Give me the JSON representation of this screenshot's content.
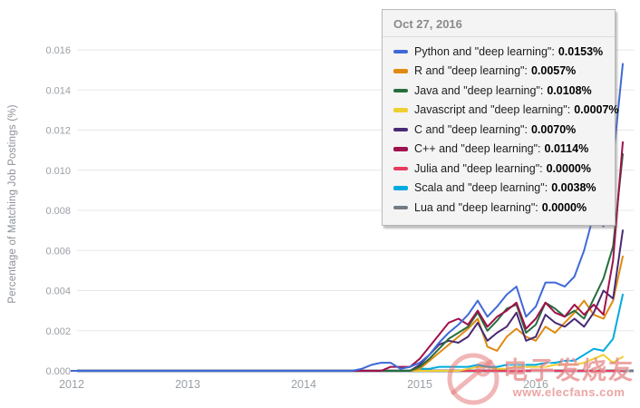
{
  "tooltip": {
    "date": "Oct 27, 2016",
    "items": [
      {
        "label": "Python and \"deep learning\"",
        "value": "0.0153%",
        "color": "#3f69d8"
      },
      {
        "label": "R and \"deep learning\"",
        "value": "0.0057%",
        "color": "#e08a12"
      },
      {
        "label": "Java and \"deep learning\"",
        "value": "0.0108%",
        "color": "#276e3e"
      },
      {
        "label": "Javascript and \"deep learning\"",
        "value": "0.0007%",
        "color": "#eecf32"
      },
      {
        "label": "C and \"deep learning\"",
        "value": "0.0070%",
        "color": "#482a75"
      },
      {
        "label": "C++ and \"deep learning\"",
        "value": "0.0114%",
        "color": "#a0104c"
      },
      {
        "label": "Julia and \"deep learning\"",
        "value": "0.0000%",
        "color": "#e93a5f"
      },
      {
        "label": "Scala and \"deep learning\"",
        "value": "0.0038%",
        "color": "#00aade"
      },
      {
        "label": "Lua and \"deep learning\"",
        "value": "0.0000%",
        "color": "#737b84"
      }
    ]
  },
  "watermark": {
    "title": "电子发烧友",
    "url": "www.elecfans.com"
  },
  "chart_data": {
    "type": "line",
    "title": "",
    "xlabel": "",
    "ylabel": "Percentage of Matching Job Postings (%)",
    "ylim": [
      0,
      0.016
    ],
    "y_tick_step": 0.002,
    "y_tick_labels": [
      "0.000",
      "0.002",
      "0.004",
      "0.006",
      "0.008",
      "0.010",
      "0.012",
      "0.014",
      "0.016"
    ],
    "x_tick_labels": [
      "2012",
      "2013",
      "2014",
      "2015",
      "2016"
    ],
    "x_range_months": {
      "start": "2012-01",
      "end": "2016-10",
      "points": 58
    },
    "grid": true,
    "legend_position": "tooltip-overlay",
    "draw_order": [
      "Lua",
      "Julia",
      "Javascript",
      "Scala",
      "R",
      "C",
      "Java",
      "C++",
      "Python"
    ],
    "series": [
      {
        "name": "Python",
        "color": "#3f69d8",
        "values": [
          0,
          0,
          0,
          0,
          0,
          0,
          0,
          0,
          0,
          0,
          0,
          0,
          0,
          0,
          0,
          0,
          0,
          0,
          0,
          0,
          0,
          0,
          0,
          0,
          0,
          0,
          0,
          0,
          0,
          0,
          0.0001,
          0.0003,
          0.0004,
          0.0004,
          0.0001,
          0.0002,
          0.0004,
          0.0008,
          0.0014,
          0.0019,
          0.0023,
          0.0028,
          0.0035,
          0.0027,
          0.0032,
          0.0038,
          0.0042,
          0.0027,
          0.0032,
          0.0044,
          0.0044,
          0.0042,
          0.0047,
          0.006,
          0.0078,
          0.0072,
          0.0105,
          0.0153
        ]
      },
      {
        "name": "R",
        "color": "#e08a12",
        "values": [
          0,
          0,
          0,
          0,
          0,
          0,
          0,
          0,
          0,
          0,
          0,
          0,
          0,
          0,
          0,
          0,
          0,
          0,
          0,
          0,
          0,
          0,
          0,
          0,
          0,
          0,
          0,
          0,
          0,
          0,
          0,
          0,
          0,
          0,
          0,
          0,
          0.0001,
          0.0005,
          0.0009,
          0.0013,
          0.0017,
          0.0021,
          0.0026,
          0.0012,
          0.001,
          0.0017,
          0.0021,
          0.0017,
          0.0015,
          0.0022,
          0.0019,
          0.0024,
          0.0029,
          0.0035,
          0.0028,
          0.0026,
          0.0035,
          0.0057
        ]
      },
      {
        "name": "Java",
        "color": "#276e3e",
        "values": [
          0,
          0,
          0,
          0,
          0,
          0,
          0,
          0,
          0,
          0,
          0,
          0,
          0,
          0,
          0,
          0,
          0,
          0,
          0,
          0,
          0,
          0,
          0,
          0,
          0,
          0,
          0,
          0,
          0,
          0,
          0,
          0,
          0,
          0,
          0,
          0,
          0.0002,
          0.0006,
          0.0011,
          0.0016,
          0.0019,
          0.0022,
          0.0029,
          0.002,
          0.0025,
          0.0031,
          0.0033,
          0.0019,
          0.0023,
          0.0034,
          0.0031,
          0.0027,
          0.003,
          0.0026,
          0.0036,
          0.0046,
          0.0062,
          0.0108
        ]
      },
      {
        "name": "Javascript",
        "color": "#eecf32",
        "values": [
          0,
          0,
          0,
          0,
          0,
          0,
          0,
          0,
          0,
          0,
          0,
          0,
          0,
          0,
          0,
          0,
          0,
          0,
          0,
          0,
          0,
          0,
          0,
          0,
          0,
          0,
          0,
          0,
          0,
          0,
          0,
          0,
          0,
          0,
          0,
          0,
          0,
          0,
          0,
          0,
          0,
          0.0001,
          0.0002,
          0.0002,
          0.0001,
          0.0001,
          0.0002,
          0.0002,
          0.0002,
          0.0002,
          0.0003,
          0.0003,
          0.0003,
          0.0004,
          0.0006,
          0.0008,
          0.0004,
          0.0007
        ]
      },
      {
        "name": "C",
        "color": "#482a75",
        "values": [
          0,
          0,
          0,
          0,
          0,
          0,
          0,
          0,
          0,
          0,
          0,
          0,
          0,
          0,
          0,
          0,
          0,
          0,
          0,
          0,
          0,
          0,
          0,
          0,
          0,
          0,
          0,
          0,
          0,
          0,
          0,
          0,
          0,
          0,
          0,
          0,
          0.0003,
          0.0008,
          0.0013,
          0.0015,
          0.0014,
          0.0017,
          0.0024,
          0.0015,
          0.0019,
          0.0022,
          0.0029,
          0.0015,
          0.0017,
          0.0028,
          0.0024,
          0.0022,
          0.0026,
          0.0022,
          0.0029,
          0.004,
          0.0036,
          0.007
        ]
      },
      {
        "name": "C++",
        "color": "#a0104c",
        "values": [
          0,
          0,
          0,
          0,
          0,
          0,
          0,
          0,
          0,
          0,
          0,
          0,
          0,
          0,
          0,
          0,
          0,
          0,
          0,
          0,
          0,
          0,
          0,
          0,
          0,
          0,
          0,
          0,
          0,
          0,
          0,
          0,
          0,
          0.0002,
          0.0002,
          0.0002,
          0.0006,
          0.0012,
          0.0018,
          0.0024,
          0.0026,
          0.0023,
          0.003,
          0.0022,
          0.0027,
          0.003,
          0.0034,
          0.0021,
          0.0026,
          0.0034,
          0.0029,
          0.0027,
          0.0033,
          0.0028,
          0.0033,
          0.0028,
          0.0055,
          0.0114
        ]
      },
      {
        "name": "Julia",
        "color": "#e93a5f",
        "values": [
          0,
          0,
          0,
          0,
          0,
          0,
          0,
          0,
          0,
          0,
          0,
          0,
          0,
          0,
          0,
          0,
          0,
          0,
          0,
          0,
          0,
          0,
          0,
          0,
          0,
          0,
          0,
          0,
          0,
          0,
          0,
          0,
          0,
          0,
          0,
          0,
          0,
          0,
          0,
          0,
          0,
          0,
          0,
          0,
          0,
          0,
          0,
          0,
          0,
          0,
          0,
          0,
          0,
          0,
          0,
          0,
          0,
          0
        ]
      },
      {
        "name": "Scala",
        "color": "#00aade",
        "values": [
          0,
          0,
          0,
          0,
          0,
          0,
          0,
          0,
          0,
          0,
          0,
          0,
          0,
          0,
          0,
          0,
          0,
          0,
          0,
          0,
          0,
          0,
          0,
          0,
          0,
          0,
          0,
          0,
          0,
          0,
          0,
          0,
          0,
          0,
          0,
          0,
          0.0001,
          0.0001,
          0.0002,
          0.0002,
          0.0002,
          0.0002,
          0.0003,
          0.0002,
          0.0002,
          0.0003,
          0.0003,
          0.0003,
          0.0003,
          0.0004,
          0.0004,
          0.0005,
          0.0005,
          0.0008,
          0.0011,
          0.001,
          0.0016,
          0.0038
        ]
      },
      {
        "name": "Lua",
        "color": "#737b84",
        "values": [
          0,
          0,
          0,
          0,
          0,
          0,
          0,
          0,
          0,
          0,
          0,
          0,
          0,
          0,
          0,
          0,
          0,
          0,
          0,
          0,
          0,
          0,
          0,
          0,
          0,
          0,
          0,
          0,
          0,
          0,
          0,
          0,
          0,
          0,
          0,
          0,
          0,
          0,
          0,
          0,
          0,
          0,
          0,
          0,
          0,
          0,
          0,
          0,
          0,
          0,
          0,
          0,
          0,
          0,
          0,
          0,
          0,
          0
        ]
      }
    ],
    "style": {
      "grid_color": "#e7e7e7",
      "axis_line_color": "#767d8f",
      "tick_text_color": "#9aa0a6"
    }
  }
}
